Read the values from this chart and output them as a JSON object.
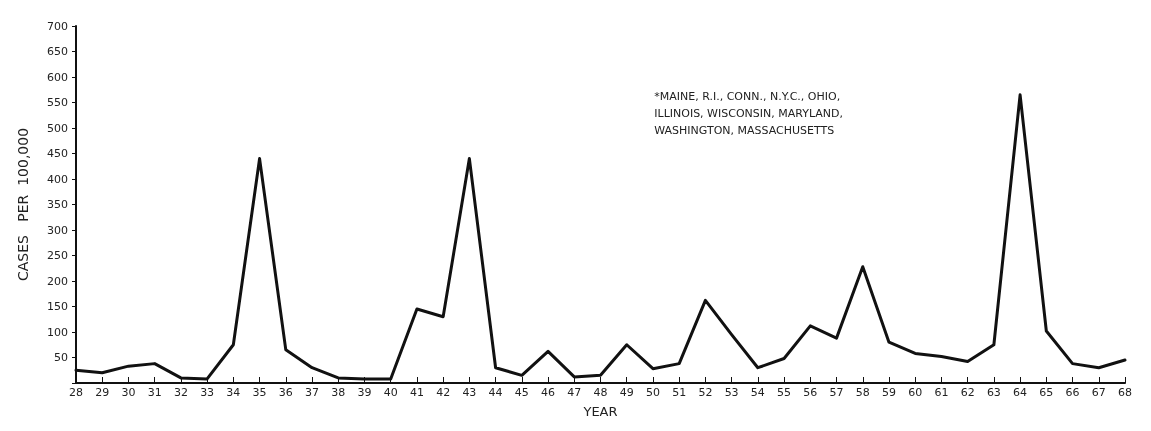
{
  "chart_data": {
    "type": "line",
    "xlabel": "YEAR",
    "ylabel": "CASES   PER  100,000",
    "categories": [
      "28",
      "29",
      "30",
      "31",
      "32",
      "33",
      "34",
      "35",
      "36",
      "37",
      "38",
      "39",
      "40",
      "41",
      "42",
      "43",
      "44",
      "45",
      "46",
      "47",
      "48",
      "49",
      "50",
      "51",
      "52",
      "53",
      "54",
      "55",
      "56",
      "57",
      "58",
      "59",
      "60",
      "61",
      "62",
      "63",
      "64",
      "65",
      "66",
      "67",
      "68"
    ],
    "values": [
      25,
      20,
      33,
      38,
      10,
      8,
      75,
      440,
      65,
      30,
      10,
      8,
      8,
      145,
      130,
      440,
      30,
      15,
      62,
      12,
      15,
      75,
      28,
      38,
      162,
      95,
      30,
      48,
      112,
      88,
      228,
      80,
      58,
      52,
      42,
      75,
      565,
      102,
      38,
      30,
      45
    ],
    "color": "#111111",
    "ylim": [
      0,
      700
    ],
    "yticks": [
      {
        "value": 0,
        "label": null
      },
      50,
      100,
      150,
      200,
      250,
      300,
      350,
      400,
      450,
      500,
      550,
      600,
      650,
      700
    ],
    "annotations": [
      "*MAINE, R.I., CONN., N.Y.C., OHIO,\nILLINOIS, WISCONSIN, MARYLAND,\nWASHINGTON, MASSACHUSETTS"
    ],
    "grid": false,
    "marker": "none",
    "line_style": "solid"
  }
}
